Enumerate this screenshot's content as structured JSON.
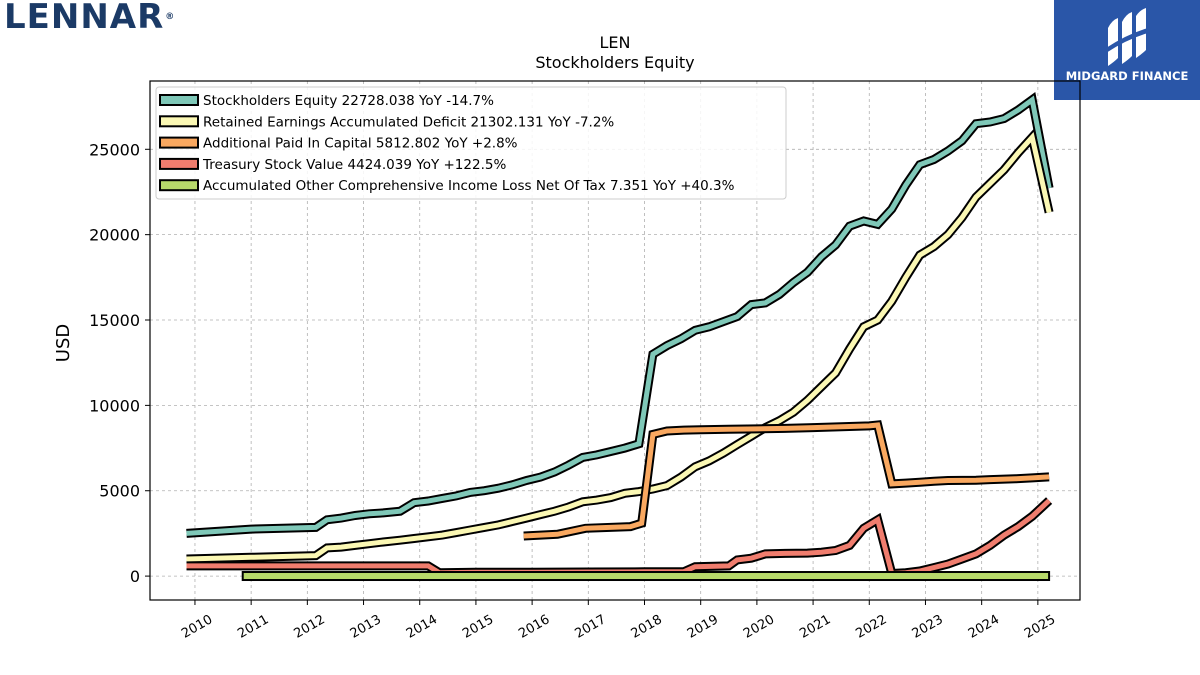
{
  "brand": {
    "company_logo_text": "LENNAR",
    "company_logo_mark": "®",
    "badge_text": "MIDGARD FINANCE",
    "badge_color": "#2a56a8"
  },
  "chart_data": {
    "type": "line",
    "title": "LEN",
    "subtitle": "Stockholders  Equity",
    "xlabel": "",
    "ylabel": "USD",
    "xlim": [
      2009.2,
      2025.75
    ],
    "ylim": [
      -1400,
      29000
    ],
    "grid": true,
    "legend_position": "top-left",
    "x_ticks": [
      2010,
      2011,
      2012,
      2013,
      2014,
      2015,
      2016,
      2017,
      2018,
      2019,
      2020,
      2021,
      2022,
      2023,
      2024,
      2025
    ],
    "x_tick_labels": [
      "2010",
      "2011",
      "2012",
      "2013",
      "2014",
      "2015",
      "2016",
      "2017",
      "2018",
      "2019",
      "2020",
      "2021",
      "2022",
      "2023",
      "2024",
      "2025"
    ],
    "y_ticks": [
      0,
      5000,
      10000,
      15000,
      20000,
      25000
    ],
    "y_tick_labels": [
      "0",
      "5000",
      "10000",
      "15000",
      "20000",
      "25000"
    ],
    "series": [
      {
        "name": "Stockholders Equity",
        "legend_label": "Stockholders Equity  22728.038 YoY -14.7%",
        "color": "#7fc8b8",
        "x": [
          2009.85,
          2011.0,
          2012.15,
          2012.35,
          2012.6,
          2012.85,
          2013.1,
          2013.35,
          2013.65,
          2013.9,
          2014.15,
          2014.4,
          2014.65,
          2014.9,
          2015.15,
          2015.4,
          2015.65,
          2015.9,
          2016.15,
          2016.4,
          2016.65,
          2016.9,
          2017.15,
          2017.4,
          2017.65,
          2017.9,
          2018.15,
          2018.4,
          2018.65,
          2018.9,
          2019.15,
          2019.4,
          2019.65,
          2019.9,
          2020.15,
          2020.4,
          2020.65,
          2020.9,
          2021.15,
          2021.4,
          2021.65,
          2021.9,
          2022.15,
          2022.4,
          2022.65,
          2022.9,
          2023.15,
          2023.4,
          2023.65,
          2023.9,
          2024.15,
          2024.4,
          2024.65,
          2024.9,
          2025.2
        ],
        "values": [
          2500,
          2750,
          2850,
          3300,
          3400,
          3550,
          3650,
          3700,
          3800,
          4300,
          4400,
          4550,
          4700,
          4900,
          5000,
          5150,
          5350,
          5600,
          5800,
          6100,
          6500,
          6950,
          7100,
          7300,
          7500,
          7750,
          13000,
          13500,
          13900,
          14400,
          14600,
          14900,
          15200,
          15900,
          16000,
          16500,
          17200,
          17800,
          18700,
          19400,
          20500,
          20800,
          20600,
          21500,
          22900,
          24100,
          24400,
          24900,
          25500,
          26500,
          26600,
          26800,
          27300,
          27900,
          22728
        ]
      },
      {
        "name": "Retained Earnings Accumulated Deficit",
        "legend_label": "Retained Earnings Accumulated Deficit  21302.131 YoY -7.2%",
        "color": "#fbf8b4",
        "x": [
          2009.85,
          2011.0,
          2012.15,
          2012.35,
          2012.6,
          2012.85,
          2013.1,
          2013.35,
          2013.65,
          2013.9,
          2014.15,
          2014.4,
          2014.65,
          2014.9,
          2015.15,
          2015.4,
          2015.65,
          2015.9,
          2016.15,
          2016.4,
          2016.65,
          2016.9,
          2017.15,
          2017.4,
          2017.65,
          2017.9,
          2018.15,
          2018.4,
          2018.65,
          2018.9,
          2019.15,
          2019.4,
          2019.65,
          2019.9,
          2020.15,
          2020.4,
          2020.65,
          2020.9,
          2021.15,
          2021.4,
          2021.65,
          2021.9,
          2022.15,
          2022.4,
          2022.65,
          2022.9,
          2023.15,
          2023.4,
          2023.65,
          2023.9,
          2024.15,
          2024.4,
          2024.65,
          2024.9,
          2025.2
        ],
        "values": [
          1000,
          1100,
          1200,
          1650,
          1700,
          1800,
          1900,
          2000,
          2100,
          2200,
          2300,
          2400,
          2550,
          2700,
          2850,
          3000,
          3200,
          3400,
          3600,
          3800,
          4050,
          4350,
          4450,
          4600,
          4850,
          4950,
          5100,
          5300,
          5800,
          6400,
          6750,
          7200,
          7700,
          8200,
          8700,
          9100,
          9600,
          10300,
          11100,
          11900,
          13300,
          14600,
          15000,
          16100,
          17500,
          18800,
          19300,
          20000,
          21000,
          22200,
          23000,
          23800,
          24800,
          25700,
          21302
        ]
      },
      {
        "name": "Additional Paid In Capital",
        "legend_label": "Additional Paid In Capital  5812.802 YoY +2.8%",
        "color": "#f9a860",
        "x": [
          2015.85,
          2016.45,
          2016.95,
          2017.75,
          2017.95,
          2018.15,
          2018.4,
          2018.7,
          2019.0,
          2019.5,
          2020.0,
          2020.5,
          2021.0,
          2021.5,
          2022.0,
          2022.15,
          2022.4,
          2022.65,
          2022.9,
          2023.15,
          2023.4,
          2023.9,
          2024.15,
          2024.6,
          2024.9,
          2025.2
        ],
        "values": [
          2350,
          2450,
          2800,
          2900,
          3100,
          8300,
          8500,
          8550,
          8570,
          8600,
          8620,
          8650,
          8700,
          8750,
          8800,
          8850,
          5400,
          5450,
          5500,
          5550,
          5600,
          5620,
          5650,
          5700,
          5750,
          5813
        ]
      },
      {
        "name": "Treasury Stock Value",
        "legend_label": "Treasury Stock Value  4424.039 YoY +122.5%",
        "color": "#f07d6e",
        "x": [
          2009.85,
          2014.15,
          2014.35,
          2015.0,
          2016.0,
          2017.0,
          2018.0,
          2018.7,
          2018.9,
          2019.5,
          2019.65,
          2019.9,
          2020.15,
          2020.5,
          2020.9,
          2021.15,
          2021.4,
          2021.65,
          2021.9,
          2022.15,
          2022.4,
          2022.65,
          2022.9,
          2023.15,
          2023.4,
          2023.65,
          2023.9,
          2024.15,
          2024.4,
          2024.65,
          2024.9,
          2025.2
        ],
        "values": [
          600,
          600,
          200,
          220,
          230,
          240,
          250,
          260,
          550,
          600,
          950,
          1050,
          1300,
          1330,
          1350,
          1400,
          1500,
          1800,
          2800,
          3300,
          150,
          200,
          300,
          500,
          700,
          1000,
          1300,
          1800,
          2400,
          2900,
          3500,
          4424
        ]
      },
      {
        "name": "Accumulated Other Comprehensive Income Loss Net Of Tax",
        "legend_label": "Accumulated Other Comprehensive Income Loss Net Of Tax  7.351 YoY +40.3%",
        "color": "#b7d96a",
        "x": [
          2010.85,
          2025.2
        ],
        "values": [
          5,
          7.351
        ],
        "band": true
      }
    ]
  }
}
